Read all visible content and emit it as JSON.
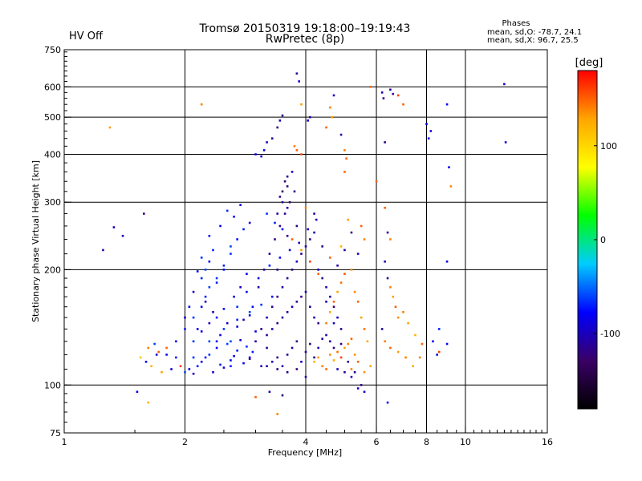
{
  "chart_data": {
    "type": "scatter",
    "title": "Tromsø 20150319 19:18:00–19:19:43",
    "subtitle": "RwPretec (8p)",
    "status_text": "HV Off",
    "status_color": "#cc0000",
    "xlabel": "Frequency [MHz]",
    "ylabel": "Stationary phase Virtual Height [km]",
    "x_scale": "log",
    "y_scale": "log",
    "xlim": [
      1,
      16
    ],
    "ylim": [
      75,
      750
    ],
    "x_ticks": [
      1,
      2,
      4,
      6,
      8,
      10,
      16
    ],
    "x_tick_labels": [
      "1",
      "2",
      "4",
      "6",
      "8",
      "10",
      "16"
    ],
    "y_ticks": [
      75,
      100,
      200,
      300,
      400,
      500,
      600,
      750
    ],
    "y_tick_labels": [
      "75",
      "100",
      "200",
      "300",
      "400",
      "500",
      "600",
      "750"
    ],
    "grid_x": [
      2,
      4,
      6,
      8,
      10
    ],
    "grid_y": [
      100,
      200,
      300,
      400,
      500,
      600
    ],
    "grid": true,
    "stats": {
      "heading": "Phases",
      "line_o": "mean, sd,O: -78.7, 24.1",
      "line_x": "mean, sd,X:  96.7, 25.5"
    },
    "colorbar": {
      "label": "[deg]",
      "range": [
        -180,
        180
      ],
      "ticks": [
        100,
        0,
        -100
      ],
      "tick_labels": [
        "100",
        "0",
        "-100"
      ],
      "colormap": [
        "#000000",
        "#3a0066",
        "#0000ff",
        "#00ccff",
        "#00ff00",
        "#ffff00",
        "#ffa500",
        "#ff0000"
      ]
    },
    "points": [
      [
        1.25,
        225,
        -110
      ],
      [
        1.33,
        258,
        -100
      ],
      [
        1.4,
        245,
        -105
      ],
      [
        1.52,
        96,
        -80
      ],
      [
        1.58,
        280,
        -120
      ],
      [
        1.62,
        90,
        120
      ],
      [
        1.3,
        470,
        130
      ],
      [
        2.2,
        540,
        140
      ],
      [
        1.55,
        118,
        110
      ],
      [
        1.6,
        115,
        -85
      ],
      [
        1.65,
        112,
        120
      ],
      [
        1.7,
        120,
        -90
      ],
      [
        1.75,
        108,
        130
      ],
      [
        1.8,
        125,
        150
      ],
      [
        1.85,
        110,
        -95
      ],
      [
        1.9,
        118,
        -70
      ],
      [
        1.95,
        112,
        160
      ],
      [
        1.72,
        122,
        150
      ],
      [
        1.68,
        128,
        -60
      ],
      [
        1.62,
        125,
        140
      ],
      [
        2.0,
        108,
        -60
      ],
      [
        2.05,
        110,
        -85
      ],
      [
        2.1,
        107,
        -100
      ],
      [
        2.15,
        112,
        -70
      ],
      [
        2.2,
        115,
        -90
      ],
      [
        2.25,
        118,
        -75
      ],
      [
        2.3,
        120,
        -65
      ],
      [
        2.35,
        108,
        -95
      ],
      [
        2.4,
        125,
        -80
      ],
      [
        2.45,
        113,
        -70
      ],
      [
        2.5,
        111,
        -90
      ],
      [
        2.55,
        128,
        -60
      ],
      [
        2.6,
        116,
        -75
      ],
      [
        2.65,
        119,
        -85
      ],
      [
        2.7,
        123,
        -70
      ],
      [
        2.75,
        131,
        -95
      ],
      [
        2.8,
        114,
        -80
      ],
      [
        2.85,
        126,
        -65
      ],
      [
        2.9,
        117,
        -110
      ],
      [
        2.95,
        122,
        -70
      ],
      [
        2.0,
        150,
        -90
      ],
      [
        2.05,
        160,
        -75
      ],
      [
        2.1,
        175,
        -100
      ],
      [
        2.15,
        140,
        -85
      ],
      [
        2.2,
        190,
        -70
      ],
      [
        2.25,
        165,
        -95
      ],
      [
        2.3,
        210,
        -80
      ],
      [
        2.35,
        155,
        -105
      ],
      [
        2.4,
        185,
        -70
      ],
      [
        2.45,
        135,
        -90
      ],
      [
        2.5,
        200,
        -75
      ],
      [
        2.55,
        145,
        -100
      ],
      [
        2.6,
        220,
        -65
      ],
      [
        2.65,
        170,
        -85
      ],
      [
        2.7,
        240,
        -75
      ],
      [
        2.75,
        180,
        -95
      ],
      [
        2.8,
        255,
        -70
      ],
      [
        2.85,
        195,
        -80
      ],
      [
        2.9,
        265,
        -90
      ],
      [
        2.95,
        160,
        -75
      ],
      [
        2.1,
        130,
        -65
      ],
      [
        2.2,
        138,
        -85
      ],
      [
        2.3,
        145,
        -95
      ],
      [
        2.4,
        150,
        -70
      ],
      [
        2.5,
        158,
        -80
      ],
      [
        2.6,
        130,
        -60
      ],
      [
        2.7,
        142,
        -90
      ],
      [
        2.8,
        148,
        -105
      ],
      [
        2.9,
        152,
        -75
      ],
      [
        3.0,
        138,
        -85
      ],
      [
        2.25,
        200,
        -60
      ],
      [
        2.35,
        225,
        -70
      ],
      [
        2.45,
        260,
        -80
      ],
      [
        2.55,
        285,
        -65
      ],
      [
        2.65,
        275,
        -75
      ],
      [
        2.75,
        295,
        -90
      ],
      [
        2.2,
        215,
        -65
      ],
      [
        2.3,
        245,
        -75
      ],
      [
        2.15,
        198,
        -80
      ],
      [
        3.0,
        400,
        -80
      ],
      [
        3.1,
        395,
        -95
      ],
      [
        3.15,
        410,
        -85
      ],
      [
        3.2,
        430,
        -100
      ],
      [
        3.3,
        440,
        -110
      ],
      [
        3.4,
        470,
        -120
      ],
      [
        3.45,
        490,
        -105
      ],
      [
        3.5,
        505,
        -115
      ],
      [
        3.6,
        350,
        -110
      ],
      [
        3.7,
        360,
        -100
      ],
      [
        3.8,
        650,
        -115
      ],
      [
        3.85,
        620,
        -90
      ],
      [
        3.9,
        540,
        130
      ],
      [
        4.05,
        490,
        -95
      ],
      [
        4.1,
        500,
        -100
      ],
      [
        3.75,
        420,
        140
      ],
      [
        3.8,
        410,
        150
      ],
      [
        3.9,
        400,
        155
      ],
      [
        3.0,
        130,
        -110
      ],
      [
        3.1,
        140,
        -120
      ],
      [
        3.2,
        150,
        -100
      ],
      [
        3.3,
        160,
        -115
      ],
      [
        3.4,
        170,
        -125
      ],
      [
        3.5,
        180,
        -105
      ],
      [
        3.6,
        190,
        -110
      ],
      [
        3.7,
        200,
        -120
      ],
      [
        3.8,
        210,
        -100
      ],
      [
        3.9,
        220,
        -115
      ],
      [
        4.0,
        230,
        -105
      ],
      [
        4.1,
        240,
        -120
      ],
      [
        4.2,
        250,
        -110
      ],
      [
        4.3,
        200,
        -100
      ],
      [
        4.4,
        190,
        -115
      ],
      [
        4.5,
        180,
        -105
      ],
      [
        4.6,
        170,
        -110
      ],
      [
        4.7,
        160,
        -120
      ],
      [
        4.8,
        150,
        -100
      ],
      [
        4.9,
        140,
        -115
      ],
      [
        3.05,
        180,
        -105
      ],
      [
        3.15,
        200,
        -115
      ],
      [
        3.25,
        220,
        -110
      ],
      [
        3.35,
        240,
        -120
      ],
      [
        3.45,
        260,
        -115
      ],
      [
        3.55,
        280,
        -110
      ],
      [
        3.65,
        300,
        -120
      ],
      [
        3.75,
        320,
        -115
      ],
      [
        3.5,
        320,
        -130
      ],
      [
        3.55,
        340,
        -125
      ],
      [
        3.6,
        330,
        -120
      ],
      [
        3.45,
        310,
        -115
      ],
      [
        3.5,
        300,
        -110
      ],
      [
        3.6,
        290,
        -105
      ],
      [
        3.4,
        280,
        -115
      ],
      [
        3.3,
        115,
        -110
      ],
      [
        3.4,
        118,
        -120
      ],
      [
        3.5,
        112,
        -105
      ],
      [
        3.6,
        120,
        -115
      ],
      [
        3.7,
        125,
        -110
      ],
      [
        3.8,
        130,
        -120
      ],
      [
        3.9,
        115,
        -100
      ],
      [
        4.0,
        122,
        -110
      ],
      [
        4.1,
        128,
        -115
      ],
      [
        4.2,
        118,
        -120
      ],
      [
        4.3,
        125,
        -105
      ],
      [
        4.4,
        132,
        -110
      ],
      [
        3.2,
        135,
        -115
      ],
      [
        3.3,
        140,
        -105
      ],
      [
        3.4,
        145,
        -120
      ],
      [
        3.5,
        150,
        -110
      ],
      [
        3.6,
        155,
        -115
      ],
      [
        3.7,
        160,
        -100
      ],
      [
        3.8,
        165,
        -110
      ],
      [
        3.9,
        170,
        -120
      ],
      [
        4.0,
        175,
        -105
      ],
      [
        4.1,
        160,
        -115
      ],
      [
        4.2,
        150,
        -110
      ],
      [
        4.3,
        145,
        -120
      ],
      [
        4.5,
        135,
        -110
      ],
      [
        4.6,
        130,
        -100
      ],
      [
        4.7,
        125,
        -115
      ],
      [
        4.2,
        115,
        120
      ],
      [
        4.3,
        118,
        130
      ],
      [
        4.4,
        112,
        140
      ],
      [
        4.5,
        110,
        150
      ],
      [
        4.6,
        120,
        135
      ],
      [
        4.7,
        116,
        125
      ],
      [
        4.8,
        122,
        145
      ],
      [
        4.9,
        118,
        160
      ],
      [
        5.0,
        125,
        130
      ],
      [
        5.1,
        128,
        140
      ],
      [
        5.2,
        132,
        150
      ],
      [
        5.3,
        120,
        135
      ],
      [
        4.5,
        145,
        140
      ],
      [
        4.6,
        155,
        125
      ],
      [
        4.7,
        165,
        150
      ],
      [
        4.8,
        175,
        130
      ],
      [
        4.9,
        185,
        145
      ],
      [
        5.0,
        195,
        155
      ],
      [
        5.2,
        200,
        135
      ],
      [
        5.3,
        175,
        140
      ],
      [
        5.4,
        165,
        150
      ],
      [
        5.5,
        150,
        130
      ],
      [
        5.6,
        140,
        145
      ],
      [
        5.7,
        130,
        125
      ],
      [
        5.5,
        260,
        150
      ],
      [
        5.6,
        240,
        140
      ],
      [
        5.1,
        270,
        130
      ],
      [
        4.9,
        230,
        120
      ],
      [
        5.2,
        110,
        140
      ],
      [
        5.4,
        115,
        150
      ],
      [
        5.6,
        108,
        135
      ],
      [
        5.8,
        112,
        125
      ],
      [
        4.8,
        110,
        -100
      ],
      [
        5.0,
        108,
        -110
      ],
      [
        5.2,
        105,
        -90
      ],
      [
        5.4,
        98,
        -100
      ],
      [
        5.6,
        96,
        -95
      ],
      [
        4.5,
        470,
        150
      ],
      [
        4.6,
        530,
        140
      ],
      [
        4.65,
        500,
        130
      ],
      [
        4.7,
        570,
        -100
      ],
      [
        4.9,
        450,
        -110
      ],
      [
        5.0,
        410,
        140
      ],
      [
        5.05,
        390,
        150
      ],
      [
        5.0,
        360,
        150
      ],
      [
        5.8,
        600,
        150
      ],
      [
        6.2,
        580,
        -100
      ],
      [
        6.25,
        560,
        -110
      ],
      [
        6.3,
        430,
        -115
      ],
      [
        6.5,
        590,
        -105
      ],
      [
        6.6,
        575,
        -110
      ],
      [
        6.8,
        570,
        160
      ],
      [
        7.0,
        540,
        150
      ],
      [
        6.0,
        340,
        150
      ],
      [
        6.3,
        290,
        150
      ],
      [
        6.4,
        250,
        -110
      ],
      [
        6.5,
        240,
        140
      ],
      [
        6.3,
        210,
        -100
      ],
      [
        6.4,
        190,
        -115
      ],
      [
        6.5,
        180,
        140
      ],
      [
        6.6,
        170,
        130
      ],
      [
        6.7,
        160,
        150
      ],
      [
        6.8,
        150,
        135
      ],
      [
        7.0,
        155,
        140
      ],
      [
        7.2,
        145,
        130
      ],
      [
        7.5,
        135,
        120
      ],
      [
        7.8,
        128,
        150
      ],
      [
        6.2,
        140,
        -110
      ],
      [
        6.3,
        130,
        140
      ],
      [
        6.5,
        125,
        150
      ],
      [
        6.8,
        122,
        130
      ],
      [
        7.1,
        118,
        140
      ],
      [
        7.4,
        112,
        125
      ],
      [
        7.7,
        118,
        140
      ],
      [
        8.0,
        480,
        -80
      ],
      [
        8.2,
        460,
        -90
      ],
      [
        8.1,
        440,
        -75
      ],
      [
        9.0,
        540,
        -80
      ],
      [
        9.1,
        370,
        -85
      ],
      [
        9.0,
        210,
        -90
      ],
      [
        9.2,
        330,
        140
      ],
      [
        8.6,
        140,
        -70
      ],
      [
        8.3,
        130,
        -75
      ],
      [
        8.5,
        120,
        -80
      ],
      [
        9.0,
        128,
        -85
      ],
      [
        8.6,
        122,
        160
      ],
      [
        12.5,
        610,
        -95
      ],
      [
        12.6,
        430,
        -90
      ],
      [
        6.4,
        90,
        -85
      ],
      [
        3.25,
        96,
        -110
      ],
      [
        3.5,
        94,
        -120
      ],
      [
        3.0,
        93,
        150
      ],
      [
        3.4,
        84,
        140
      ],
      [
        2.1,
        118,
        -65
      ],
      [
        2.4,
        130,
        -80
      ],
      [
        2.6,
        112,
        -70
      ],
      [
        2.9,
        118,
        -90
      ],
      [
        3.1,
        112,
        -105
      ],
      [
        3.2,
        125,
        -115
      ],
      [
        3.3,
        170,
        -80
      ],
      [
        3.4,
        200,
        -110
      ],
      [
        3.6,
        245,
        -120
      ],
      [
        3.8,
        260,
        -115
      ],
      [
        4.0,
        290,
        140
      ],
      [
        4.2,
        280,
        -110
      ],
      [
        4.4,
        230,
        -115
      ],
      [
        4.6,
        215,
        150
      ],
      [
        4.8,
        205,
        -105
      ],
      [
        5.0,
        225,
        -110
      ],
      [
        5.2,
        250,
        -115
      ],
      [
        5.4,
        220,
        -100
      ],
      [
        3.2,
        280,
        -65
      ],
      [
        3.35,
        265,
        -70
      ],
      [
        3.5,
        255,
        -75
      ],
      [
        3.7,
        240,
        150
      ],
      [
        3.9,
        225,
        130
      ],
      [
        4.1,
        210,
        160
      ],
      [
        4.3,
        195,
        150
      ],
      [
        4.5,
        165,
        -110
      ],
      [
        4.7,
        145,
        -100
      ],
      [
        4.9,
        128,
        -120
      ],
      [
        5.1,
        115,
        -110
      ],
      [
        5.3,
        108,
        -115
      ],
      [
        5.5,
        100,
        -120
      ],
      [
        4.0,
        105,
        -110
      ],
      [
        3.8,
        110,
        -125
      ],
      [
        3.6,
        108,
        -115
      ],
      [
        3.4,
        110,
        -120
      ],
      [
        3.2,
        112,
        -110
      ],
      [
        2.7,
        160,
        -65
      ],
      [
        2.85,
        175,
        -75
      ],
      [
        3.05,
        190,
        -85
      ],
      [
        3.25,
        205,
        -70
      ],
      [
        3.45,
        215,
        -80
      ],
      [
        3.65,
        225,
        -90
      ],
      [
        3.85,
        235,
        -100
      ],
      [
        4.05,
        255,
        -95
      ],
      [
        4.25,
        270,
        -100
      ],
      [
        2.3,
        130,
        -60
      ],
      [
        2.5,
        140,
        -65
      ],
      [
        2.7,
        148,
        -70
      ],
      [
        2.9,
        155,
        -60
      ],
      [
        3.1,
        162,
        -65
      ],
      [
        1.8,
        120,
        -75
      ],
      [
        1.9,
        130,
        -80
      ],
      [
        2.0,
        140,
        -70
      ],
      [
        2.1,
        150,
        -65
      ],
      [
        2.2,
        160,
        -75
      ],
      [
        2.25,
        170,
        -70
      ],
      [
        2.3,
        180,
        -60
      ],
      [
        2.4,
        190,
        -65
      ],
      [
        2.5,
        205,
        -70
      ],
      [
        2.6,
        230,
        -60
      ]
    ]
  }
}
